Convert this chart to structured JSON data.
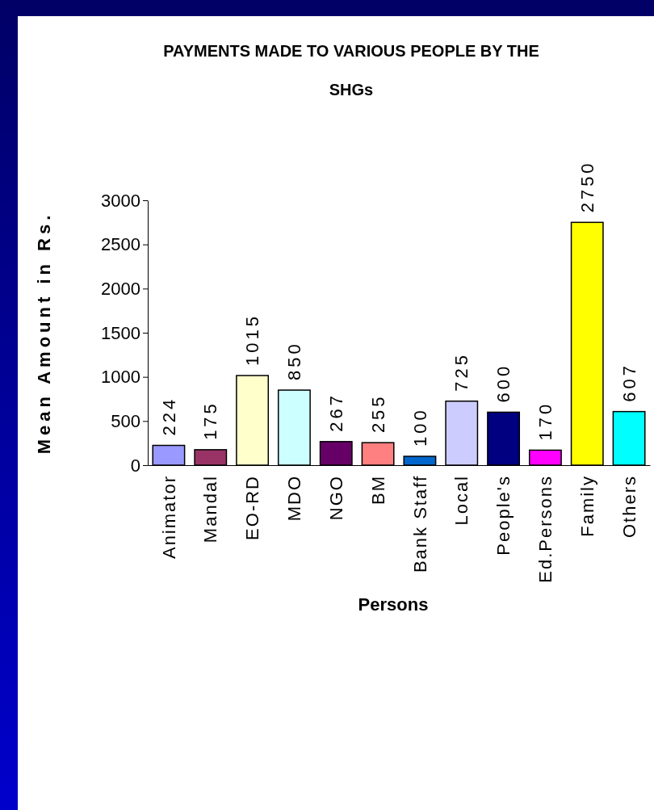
{
  "chart_data": {
    "type": "bar",
    "title": "PAYMENTS MADE TO VARIOUS PEOPLE BY THE SHGs",
    "xlabel": "Persons",
    "ylabel": "Mean Amount in Rs.",
    "categories": [
      "Animator",
      "Mandal",
      "EO-RD",
      "MDO",
      "NGO",
      "BM",
      "Bank Staff",
      "Local",
      "People's",
      "Ed.Persons",
      "Family",
      "Others"
    ],
    "values": [
      224,
      175,
      1015,
      850,
      267,
      255,
      100,
      725,
      600,
      170,
      2750,
      607
    ],
    "colors": [
      "#9999ff",
      "#993366",
      "#ffffcc",
      "#ccffff",
      "#660066",
      "#ff8080",
      "#0066cc",
      "#ccccff",
      "#000080",
      "#ff00ff",
      "#ffff00",
      "#00ffff"
    ],
    "ylim": [
      0,
      3000
    ],
    "yticks": [
      0,
      500,
      1000,
      1500,
      2000,
      2500,
      3000
    ],
    "data_labels": true
  }
}
